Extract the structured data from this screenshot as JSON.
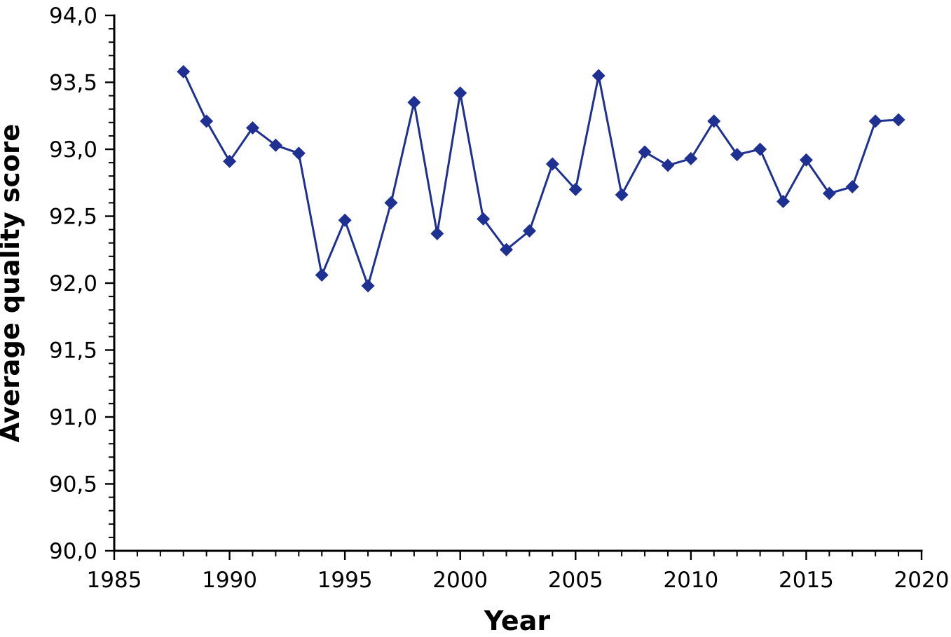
{
  "chart_data": {
    "type": "line",
    "title": "",
    "xlabel": "Year",
    "ylabel": "Average quality score",
    "x": [
      1988,
      1989,
      1990,
      1991,
      1992,
      1993,
      1994,
      1995,
      1996,
      1997,
      1998,
      1999,
      2000,
      2001,
      2002,
      2003,
      2004,
      2005,
      2006,
      2007,
      2008,
      2009,
      2010,
      2011,
      2012,
      2013,
      2014,
      2015,
      2016,
      2017,
      2018,
      2019
    ],
    "series": [
      {
        "name": "Average quality score",
        "color": "#1e3192",
        "marker": "diamond",
        "values": [
          93.58,
          93.21,
          92.91,
          93.16,
          93.03,
          92.97,
          92.06,
          92.47,
          91.98,
          92.6,
          93.35,
          92.37,
          93.42,
          92.48,
          92.25,
          92.39,
          92.89,
          92.7,
          93.55,
          92.66,
          92.98,
          92.88,
          92.93,
          93.21,
          92.96,
          93.0,
          92.61,
          92.92,
          92.67,
          92.72,
          93.21,
          93.22
        ]
      }
    ],
    "xlim": [
      1985,
      2020
    ],
    "ylim": [
      90.0,
      94.0
    ],
    "x_tick_values": [
      1985,
      1990,
      1995,
      2000,
      2005,
      2010,
      2015,
      2020
    ],
    "x_tick_labels": [
      "1985",
      "1990",
      "1995",
      "2000",
      "2005",
      "2010",
      "2015",
      "2020"
    ],
    "x_minor_step": 1,
    "y_tick_values": [
      90.0,
      90.5,
      91.0,
      91.5,
      92.0,
      92.5,
      93.0,
      93.5,
      94.0
    ],
    "y_tick_labels": [
      "90,0",
      "90,5",
      "91,0",
      "91,5",
      "92,0",
      "92,5",
      "93,0",
      "93,5",
      "94,0"
    ],
    "y_minor_step": 0.1,
    "decimal_separator": ",",
    "grid": false,
    "legend_position": "none",
    "axis_color": "#000000",
    "text_color": "#000000",
    "background_color": "#ffffff"
  }
}
